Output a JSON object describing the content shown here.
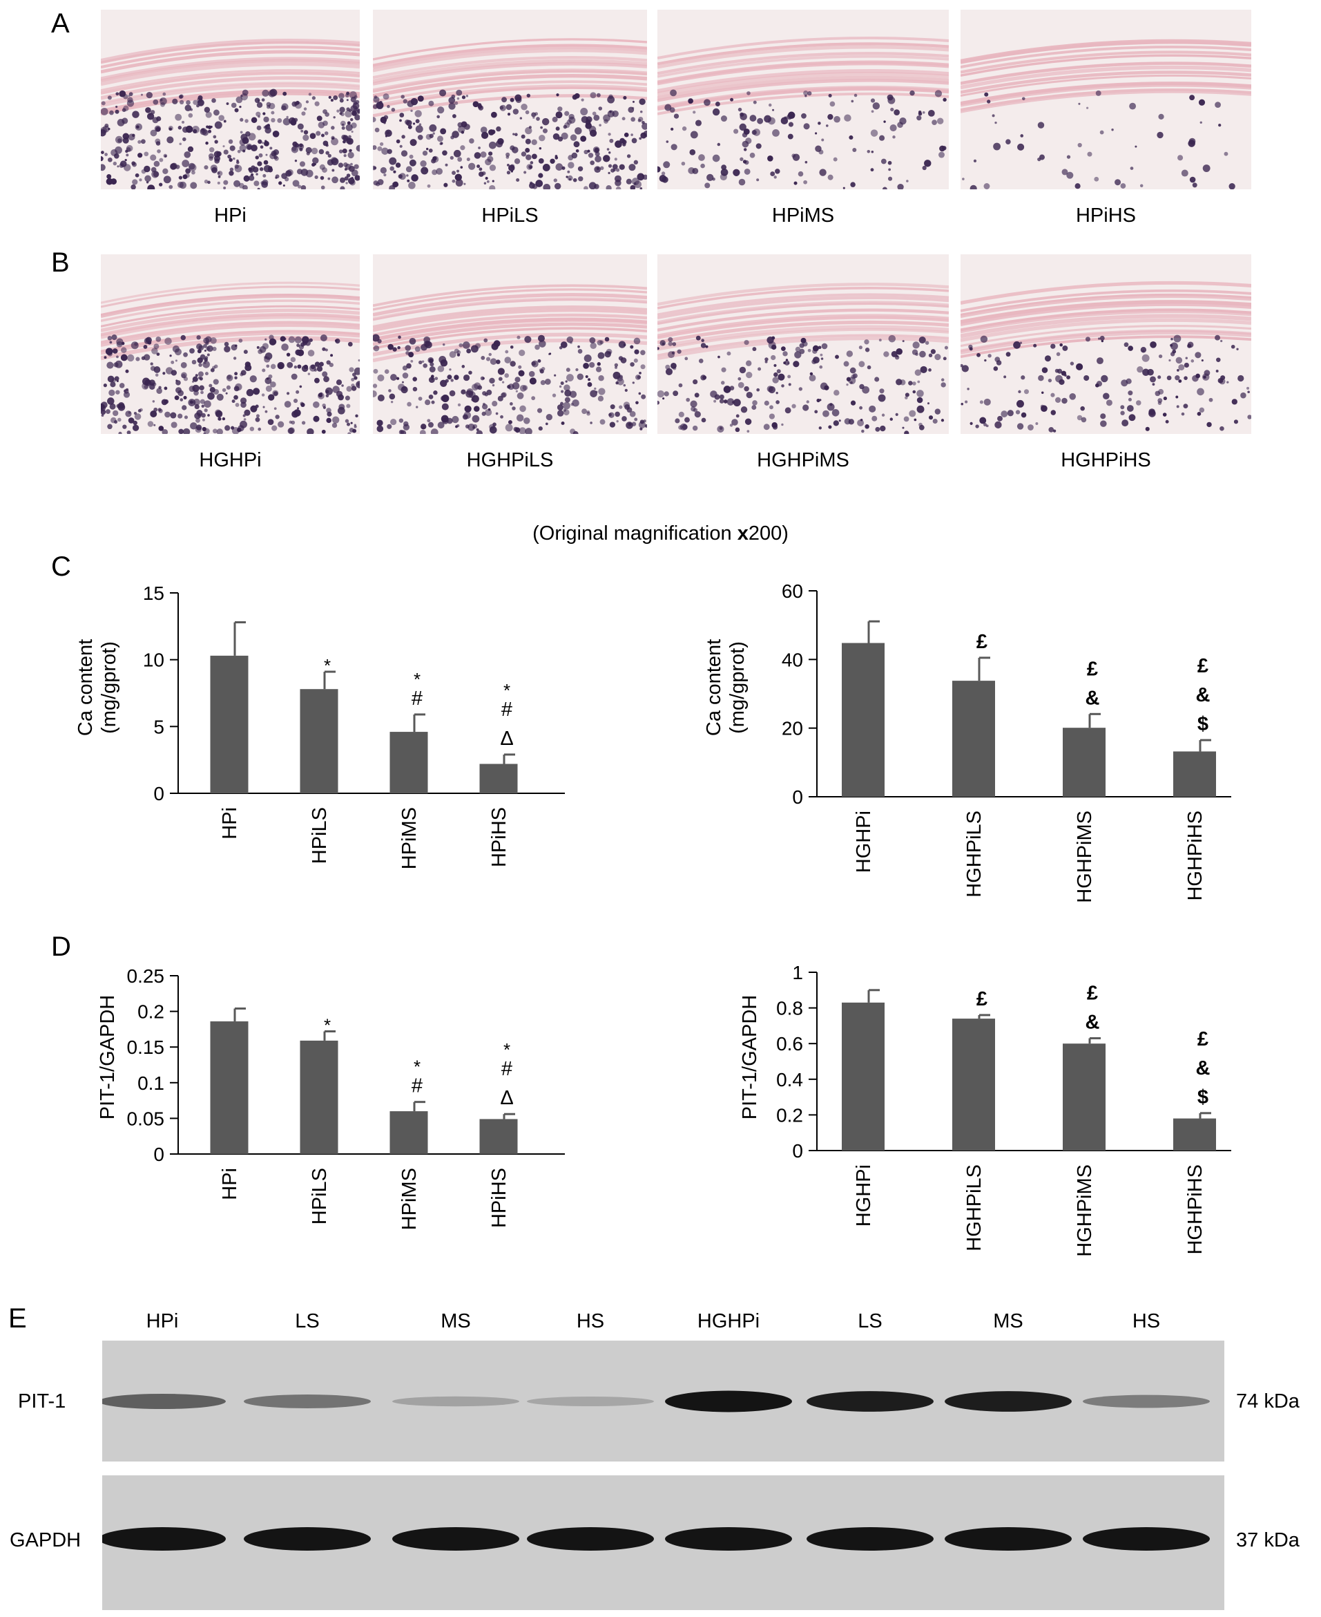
{
  "panels": {
    "A": "A",
    "B": "B",
    "C": "C",
    "D": "D",
    "E": "E"
  },
  "histology": {
    "row_a": [
      "HPi",
      "HPiLS",
      "HPiMS",
      "HPiHS"
    ],
    "row_b": [
      "HGHPi",
      "HGHPiLS",
      "HGHPiMS",
      "HGHPiHS"
    ],
    "magnification_prefix": "(Original magnification ",
    "magnification_x": "x",
    "magnification_suffix": "200)"
  },
  "stain_colors": {
    "tissue": "#e8b7c0",
    "deposit": "#3a2550",
    "background": "#f4ecec"
  },
  "bar_color": "#595959",
  "chart_data": [
    {
      "id": "c-left",
      "type": "bar",
      "categories": [
        "HPi",
        "HPiLS",
        "HPiMS",
        "HPiHS"
      ],
      "values": [
        10.3,
        7.8,
        4.6,
        2.2
      ],
      "errors": [
        2.5,
        1.3,
        1.3,
        0.7
      ],
      "ylabel": "Ca content\n(mg/gprot)",
      "ylim": [
        0,
        15
      ],
      "yticks": [
        "0",
        "5",
        "10",
        "15"
      ],
      "marks": [
        [],
        [
          "*"
        ],
        [
          "*",
          "#"
        ],
        [
          "*",
          "#",
          "Δ"
        ]
      ]
    },
    {
      "id": "c-right",
      "type": "bar",
      "categories": [
        "HGHPi",
        "HGHPiLS",
        "HGHPiMS",
        "HGHPiHS"
      ],
      "values": [
        44.8,
        33.8,
        20.1,
        13.2
      ],
      "errors": [
        6.3,
        6.7,
        4.0,
        3.3
      ],
      "ylabel": "Ca content\n(mg/gprot)",
      "ylim": [
        0,
        60
      ],
      "yticks": [
        "0",
        "20",
        "40",
        "60"
      ],
      "marks": [
        [],
        [
          "£"
        ],
        [
          "£",
          "&"
        ],
        [
          "£",
          "&",
          "$"
        ]
      ]
    },
    {
      "id": "d-left",
      "type": "bar",
      "categories": [
        "HPi",
        "HPiLS",
        "HPiMS",
        "HPiHS"
      ],
      "values": [
        0.186,
        0.159,
        0.06,
        0.049
      ],
      "errors": [
        0.018,
        0.013,
        0.013,
        0.007
      ],
      "ylabel": "PIT-1/GAPDH",
      "ylim": [
        0,
        0.25
      ],
      "yticks": [
        "0",
        "0.05",
        "0.1",
        "0.15",
        "0.2",
        "0.25"
      ],
      "marks": [
        [],
        [
          "*"
        ],
        [
          "*",
          "#"
        ],
        [
          "*",
          "#",
          "Δ"
        ]
      ]
    },
    {
      "id": "d-right",
      "type": "bar",
      "categories": [
        "HGHPi",
        "HGHPiLS",
        "HGHPiMS",
        "HGHPiHS"
      ],
      "values": [
        0.83,
        0.74,
        0.6,
        0.18
      ],
      "errors": [
        0.07,
        0.02,
        0.03,
        0.03
      ],
      "ylabel": "PIT-1/GAPDH",
      "ylim": [
        0,
        1
      ],
      "yticks": [
        "0",
        "0.2",
        "0.4",
        "0.6",
        "0.8",
        "1"
      ],
      "marks": [
        [],
        [
          "£"
        ],
        [
          "£",
          "&"
        ],
        [
          "£",
          "&",
          "$"
        ]
      ]
    }
  ],
  "blot": {
    "lanes": [
      "HPi",
      "LS",
      "MS",
      "HS",
      "HGHPi",
      "LS",
      "MS",
      "HS"
    ],
    "rows": [
      {
        "label": "PIT-1",
        "size": "74 kDa",
        "intensities": [
          0.55,
          0.45,
          0.2,
          0.18,
          0.95,
          0.9,
          0.9,
          0.4
        ]
      },
      {
        "label": "GAPDH",
        "size": "37 kDa",
        "intensities": [
          0.95,
          0.95,
          0.95,
          0.95,
          0.95,
          0.95,
          0.95,
          0.95
        ]
      }
    ]
  }
}
